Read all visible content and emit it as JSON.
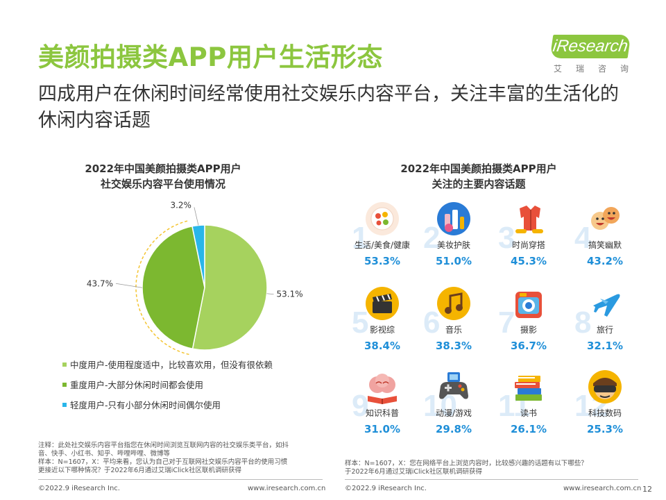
{
  "header": {
    "title": "美颜拍摄类APP用户生活形态",
    "subtitle": "四成用户在休闲时间经常使用社交娱乐内容平台，关注丰富的生活化的休闲内容话题"
  },
  "logo": {
    "brand": "iResearch",
    "cn_chars": [
      "艾",
      "瑞",
      "咨",
      "询"
    ]
  },
  "left_panel": {
    "title_line1": "2022年中国美颜拍摄类APP用户",
    "title_line2": "社交娱乐内容平台使用情况",
    "legend": [
      {
        "label": "中度用户-使用程度适中，比较喜欢用，但没有很依赖",
        "color": "#a6d25e"
      },
      {
        "label": "重度用户-大部分休闲时间都会使用",
        "color": "#7cb830"
      },
      {
        "label": "轻度用户-只有小部分休闲时间偶尔使用",
        "color": "#29b6ea"
      }
    ],
    "note_lines": [
      "注释：此处社交娱乐内容平台指您在休闲时间浏览互联网内容的社交娱乐类平台，如抖",
      "音、快手、小红书、知乎、哔哩哔哩、微博等",
      "样本：N=1607，X：平均来看，您认为自己对于互联网社交娱乐内容平台的使用习惯",
      "更接近以下哪种情况？于2022年6月通过艾瑞iClick社区联机调研获得"
    ]
  },
  "right_panel": {
    "title_line1": "2022年中国美颜拍摄类APP用户",
    "title_line2": "关注的主要内容话题",
    "note_lines": [
      "样本：N=1607，X：您在网络平台上浏览内容时，比较感兴趣的话题有以下哪些？",
      "于2022年6月通过艾瑞iClick社区联机调研获得"
    ]
  },
  "chart_data": [
    {
      "type": "pie",
      "title": "2022年中国美颜拍摄类APP用户社交娱乐内容平台使用情况",
      "slices": [
        {
          "label": "中度用户-使用程度适中，比较喜欢用，但没有很依赖",
          "value": 53.1,
          "display": "53.1%",
          "color": "#a6d25e"
        },
        {
          "label": "重度用户-大部分休闲时间都会使用",
          "value": 43.7,
          "display": "43.7%",
          "color": "#7cb830"
        },
        {
          "label": "轻度用户-只有小部分休闲时间偶尔使用",
          "value": 3.2,
          "display": "3.2%",
          "color": "#29b6ea"
        }
      ],
      "highlight_slice": "重度用户-大部分休闲时间都会使用"
    },
    {
      "type": "table",
      "title": "2022年中国美颜拍摄类APP用户关注的主要内容话题",
      "items": [
        {
          "rank": "1",
          "label": "生活/美食/健康",
          "value": 53.3,
          "display": "53.3%",
          "icon": "salad-plate-icon"
        },
        {
          "rank": "2",
          "label": "美妆护肤",
          "value": 51.0,
          "display": "51.0%",
          "icon": "cosmetics-icon"
        },
        {
          "rank": "3",
          "label": "时尚穿搭",
          "value": 45.3,
          "display": "45.3%",
          "icon": "clothing-icon"
        },
        {
          "rank": "4",
          "label": "搞笑幽默",
          "value": 43.2,
          "display": "43.2%",
          "icon": "laughing-faces-icon"
        },
        {
          "rank": "5",
          "label": "影视综",
          "value": 38.4,
          "display": "38.4%",
          "icon": "film-clapper-icon"
        },
        {
          "rank": "6",
          "label": "音乐",
          "value": 38.3,
          "display": "38.3%",
          "icon": "music-note-icon"
        },
        {
          "rank": "7",
          "label": "摄影",
          "value": 36.7,
          "display": "36.7%",
          "icon": "camera-icon"
        },
        {
          "rank": "8",
          "label": "旅行",
          "value": 32.1,
          "display": "32.1%",
          "icon": "airplane-icon"
        },
        {
          "rank": "9",
          "label": "知识科普",
          "value": 31.0,
          "display": "31.0%",
          "icon": "brain-book-icon"
        },
        {
          "rank": "10",
          "label": "动漫/游戏",
          "value": 29.8,
          "display": "29.8%",
          "icon": "gamepad-icon"
        },
        {
          "rank": "11",
          "label": "读书",
          "value": 26.1,
          "display": "26.1%",
          "icon": "book-stack-icon"
        },
        {
          "rank": "12",
          "label": "科技数码",
          "value": 25.3,
          "display": "25.3%",
          "icon": "vr-headset-icon"
        }
      ]
    }
  ],
  "footer": {
    "copyright": "©2022.9 iResearch Inc.",
    "url": "www.iresearch.com.cn",
    "page": "12"
  }
}
